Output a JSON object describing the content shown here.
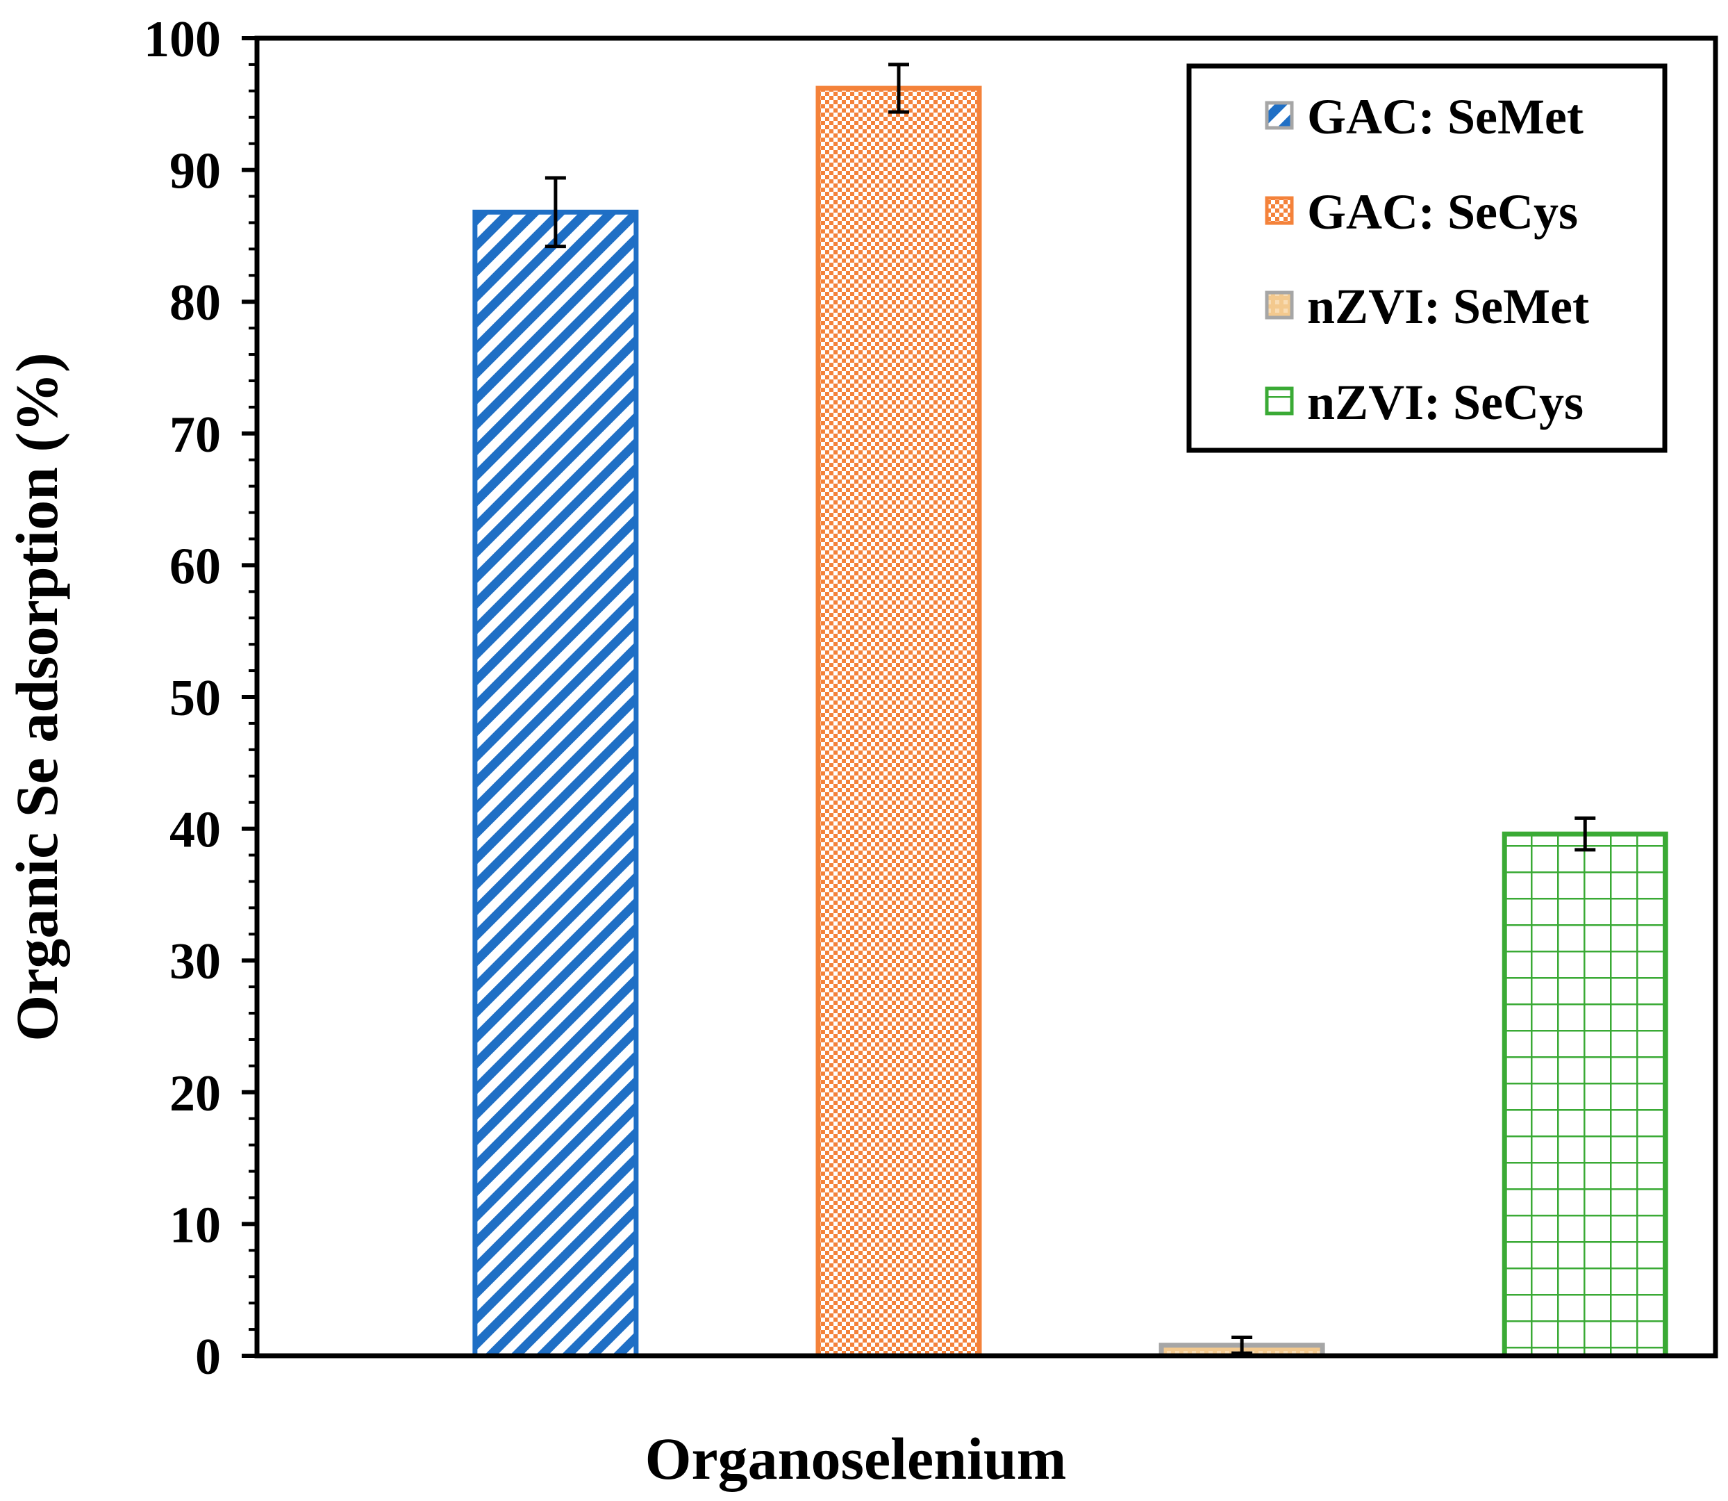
{
  "chart_data": {
    "type": "bar",
    "title": "",
    "xlabel": "Organoselenium",
    "ylabel": "Organic Se adsorption (%)",
    "ylim": [
      0,
      100
    ],
    "yticks": [
      0,
      10,
      20,
      30,
      40,
      50,
      60,
      70,
      80,
      90,
      100
    ],
    "grid": false,
    "legend_position": "top-right",
    "series": [
      {
        "name": "GAC: SeMet",
        "value": 86.8,
        "error": 2.6,
        "color": "#1f6fc5",
        "pattern": "diagonal-stripes"
      },
      {
        "name": "GAC: SeCys",
        "value": 96.2,
        "error": 1.8,
        "color": "#f4823a",
        "pattern": "checkerboard"
      },
      {
        "name": "nZVI: SeMet",
        "value": 0.8,
        "error": 0.6,
        "color": "#a6a6a6",
        "pattern": "light-fill"
      },
      {
        "name": "nZVI: SeCys",
        "value": 39.6,
        "error": 1.2,
        "color": "#3aaa35",
        "pattern": "grid"
      }
    ]
  }
}
